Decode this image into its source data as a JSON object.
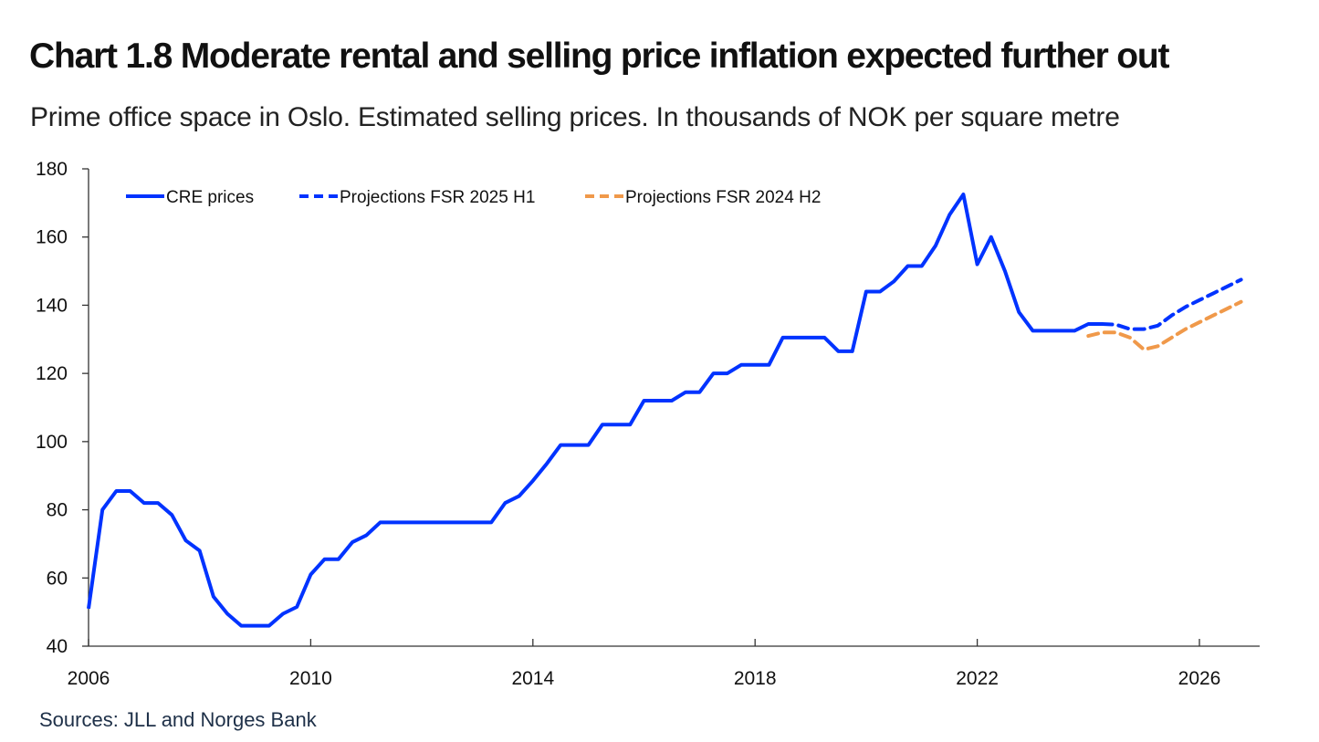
{
  "chart_data": {
    "type": "line",
    "title": "Chart 1.8 Moderate rental and selling price inflation expected further out",
    "subtitle": "Prime office space in Oslo. Estimated selling prices. In thousands of NOK per square metre",
    "source": "Sources: JLL and Norges Bank",
    "xlabel": "",
    "ylabel": "",
    "xlim": [
      2006,
      2027.1
    ],
    "ylim": [
      40,
      180
    ],
    "x_ticks": [
      2006,
      2010,
      2014,
      2018,
      2022,
      2026
    ],
    "x_tick_labels": [
      "2006",
      "2010",
      "2014",
      "2018",
      "2022",
      "2026"
    ],
    "y_ticks": [
      40,
      60,
      80,
      100,
      120,
      140,
      160,
      180
    ],
    "y_tick_labels": [
      "40",
      "60",
      "80",
      "100",
      "120",
      "140",
      "160",
      "180"
    ],
    "grid": false,
    "legend_position": "top-left",
    "series": [
      {
        "name": "CRE prices",
        "color": "#0033ff",
        "style": "solid",
        "x_start": 2006.0,
        "x_step": 0.25,
        "values": [
          51,
          80,
          85.5,
          85.5,
          82,
          82,
          78.5,
          71,
          68,
          54.5,
          49.5,
          46,
          46,
          46,
          49.5,
          51.5,
          61,
          65.5,
          65.5,
          70.5,
          72.5,
          76.3,
          76.3,
          76.3,
          76.3,
          76.3,
          76.3,
          76.3,
          76.3,
          76.3,
          82,
          84,
          88.5,
          93.5,
          99,
          99,
          99,
          105,
          105,
          105,
          112,
          112,
          112,
          114.5,
          114.5,
          120,
          120,
          122.5,
          122.5,
          122.5,
          130.5,
          130.5,
          130.5,
          130.5,
          126.5,
          126.5,
          144,
          144,
          147,
          151.5,
          151.5,
          157.5,
          166.5,
          172.5,
          152,
          160,
          150,
          138,
          132.5,
          132.5,
          132.5,
          132.5,
          134.5,
          134.5
        ]
      },
      {
        "name": "Projections FSR 2025 H1",
        "color": "#0033ff",
        "style": "dashed",
        "x_start": 2024.25,
        "x_step": 0.25,
        "values": [
          134.5,
          134.3,
          133,
          133,
          134,
          137,
          139.5,
          141.5,
          143.5,
          145.5,
          147.5
        ]
      },
      {
        "name": "Projections FSR 2024 H2",
        "color": "#f0994a",
        "style": "dashed",
        "x_start": 2024.0,
        "x_step": 0.25,
        "values": [
          131,
          132,
          132,
          130.5,
          127,
          128,
          130.5,
          133,
          135,
          137,
          139,
          141
        ]
      }
    ]
  }
}
